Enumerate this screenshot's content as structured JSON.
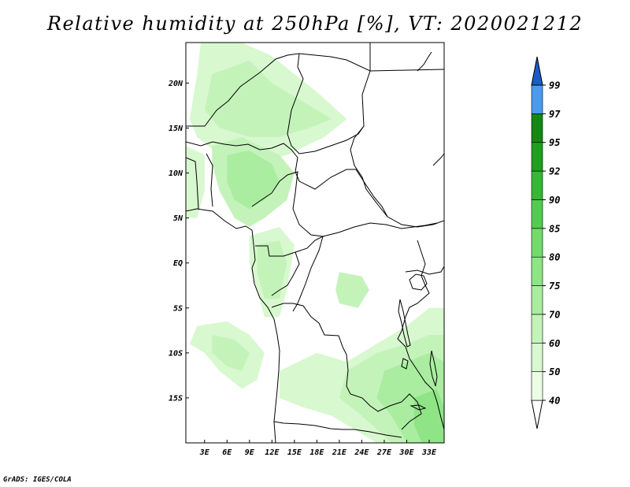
{
  "title": "Relative humidity at 250hPa [%], VT: 2020021212",
  "credit": "GrADS: IGES/COLA",
  "map": {
    "lon_range": [
      0.5,
      35
    ],
    "lat_range": [
      -20,
      24.5
    ],
    "x_ticks": [
      {
        "value": 3,
        "label": "3E"
      },
      {
        "value": 6,
        "label": "6E"
      },
      {
        "value": 9,
        "label": "9E"
      },
      {
        "value": 12,
        "label": "12E"
      },
      {
        "value": 15,
        "label": "15E"
      },
      {
        "value": 18,
        "label": "18E"
      },
      {
        "value": 21,
        "label": "21E"
      },
      {
        "value": 24,
        "label": "24E"
      },
      {
        "value": 27,
        "label": "27E"
      },
      {
        "value": 30,
        "label": "30E"
      },
      {
        "value": 33,
        "label": "33E"
      }
    ],
    "y_ticks": [
      {
        "value": 20,
        "label": "20N"
      },
      {
        "value": 15,
        "label": "15N"
      },
      {
        "value": 10,
        "label": "10N"
      },
      {
        "value": 5,
        "label": "5N"
      },
      {
        "value": 0,
        "label": "EQ"
      },
      {
        "value": -5,
        "label": "5S"
      },
      {
        "value": -10,
        "label": "10S"
      },
      {
        "value": -15,
        "label": "15S"
      }
    ]
  },
  "colorbar": {
    "levels": [
      {
        "label": "40",
        "color": "#ecfde6"
      },
      {
        "label": "50",
        "color": "#d8f8cf"
      },
      {
        "label": "60",
        "color": "#c4f3ba"
      },
      {
        "label": "70",
        "color": "#aaeda0"
      },
      {
        "label": "75",
        "color": "#8fe486"
      },
      {
        "label": "80",
        "color": "#72db6c"
      },
      {
        "label": "85",
        "color": "#52cc50"
      },
      {
        "label": "90",
        "color": "#35b835"
      },
      {
        "label": "92",
        "color": "#1f9f1f"
      },
      {
        "label": "95",
        "color": "#148814"
      },
      {
        "label": "97",
        "color": "#4a9bee"
      },
      {
        "label": "99",
        "color": "#2a7bdc"
      }
    ],
    "top_color": "#1a5cc8"
  },
  "humidity_regions": [
    {
      "name": "sahel-north",
      "level": "50",
      "points": [
        [
          2.5,
          24.5
        ],
        [
          8,
          24.5
        ],
        [
          12,
          23
        ],
        [
          18,
          19
        ],
        [
          22,
          16
        ],
        [
          19,
          14
        ],
        [
          14,
          12
        ],
        [
          9,
          11
        ],
        [
          5,
          12
        ],
        [
          2,
          14
        ],
        [
          1,
          16
        ],
        [
          2,
          21
        ]
      ]
    },
    {
      "name": "sahel-core",
      "level": "60",
      "points": [
        [
          4,
          21
        ],
        [
          9,
          22.5
        ],
        [
          12,
          20
        ],
        [
          16,
          18
        ],
        [
          20,
          16
        ],
        [
          17,
          15
        ],
        [
          13,
          14
        ],
        [
          9,
          14
        ],
        [
          5,
          15
        ],
        [
          3,
          17
        ]
      ]
    },
    {
      "name": "nigeria",
      "level": "60",
      "points": [
        [
          4,
          13
        ],
        [
          8,
          14
        ],
        [
          13,
          12
        ],
        [
          15,
          10
        ],
        [
          14,
          7
        ],
        [
          11,
          5
        ],
        [
          9,
          4
        ],
        [
          7,
          5
        ],
        [
          5,
          8
        ],
        [
          4,
          11
        ]
      ]
    },
    {
      "name": "nigeria-core",
      "level": "70",
      "points": [
        [
          6,
          12
        ],
        [
          9,
          12.5
        ],
        [
          12,
          11
        ],
        [
          13,
          9
        ],
        [
          11,
          7
        ],
        [
          9,
          6
        ],
        [
          7,
          7
        ],
        [
          6,
          9
        ]
      ]
    },
    {
      "name": "west-coast",
      "level": "50",
      "points": [
        [
          0.5,
          13
        ],
        [
          3,
          12
        ],
        [
          3,
          8
        ],
        [
          2,
          5
        ],
        [
          0.5,
          5
        ]
      ]
    },
    {
      "name": "congo-west",
      "level": "50",
      "points": [
        [
          9,
          3
        ],
        [
          13,
          4
        ],
        [
          15,
          2
        ],
        [
          14,
          -3
        ],
        [
          13,
          -6
        ],
        [
          11,
          -6
        ],
        [
          10,
          -3
        ],
        [
          9,
          0
        ]
      ]
    },
    {
      "name": "congo-core",
      "level": "60",
      "points": [
        [
          10,
          2
        ],
        [
          13,
          2.5
        ],
        [
          14,
          0
        ],
        [
          13,
          -4
        ],
        [
          11,
          -4
        ],
        [
          10,
          -1
        ]
      ]
    },
    {
      "name": "congo-center",
      "level": "60",
      "points": [
        [
          21,
          -1
        ],
        [
          24,
          -1.5
        ],
        [
          25,
          -3
        ],
        [
          23.5,
          -5
        ],
        [
          21,
          -4.5
        ],
        [
          20.5,
          -3
        ]
      ]
    },
    {
      "name": "angola-coast",
      "level": "50",
      "points": [
        [
          2,
          -7
        ],
        [
          6,
          -6.5
        ],
        [
          9,
          -8
        ],
        [
          11,
          -10
        ],
        [
          10,
          -13
        ],
        [
          8,
          -14
        ],
        [
          5,
          -12
        ],
        [
          3,
          -10
        ],
        [
          1,
          -9
        ]
      ]
    },
    {
      "name": "angola-coast-core",
      "level": "60",
      "points": [
        [
          4,
          -8
        ],
        [
          7,
          -8.5
        ],
        [
          9,
          -10
        ],
        [
          8,
          -12
        ],
        [
          6,
          -11.5
        ],
        [
          4,
          -10
        ]
      ]
    },
    {
      "name": "southeast",
      "level": "50",
      "points": [
        [
          13,
          -12
        ],
        [
          18,
          -10
        ],
        [
          22,
          -11
        ],
        [
          26,
          -9
        ],
        [
          30,
          -7
        ],
        [
          33,
          -5
        ],
        [
          35,
          -5
        ],
        [
          35,
          -20
        ],
        [
          26,
          -20
        ],
        [
          20,
          -17
        ],
        [
          16,
          -16
        ],
        [
          13,
          -15
        ]
      ]
    },
    {
      "name": "southeast-core",
      "level": "60",
      "points": [
        [
          22,
          -12
        ],
        [
          26,
          -10
        ],
        [
          30,
          -9
        ],
        [
          33,
          -8
        ],
        [
          35,
          -8
        ],
        [
          35,
          -20
        ],
        [
          28,
          -20
        ],
        [
          24,
          -17
        ],
        [
          21,
          -15
        ]
      ]
    },
    {
      "name": "southeast-deep",
      "level": "70",
      "points": [
        [
          27,
          -12
        ],
        [
          30,
          -11
        ],
        [
          33,
          -10
        ],
        [
          35,
          -11
        ],
        [
          35,
          -20
        ],
        [
          30,
          -20
        ],
        [
          28,
          -17
        ],
        [
          26,
          -15
        ]
      ]
    },
    {
      "name": "south-corner",
      "level": "75",
      "points": [
        [
          31,
          -15
        ],
        [
          34,
          -14
        ],
        [
          35,
          -16
        ],
        [
          35,
          -20
        ],
        [
          32,
          -20
        ],
        [
          31,
          -18
        ]
      ]
    }
  ]
}
